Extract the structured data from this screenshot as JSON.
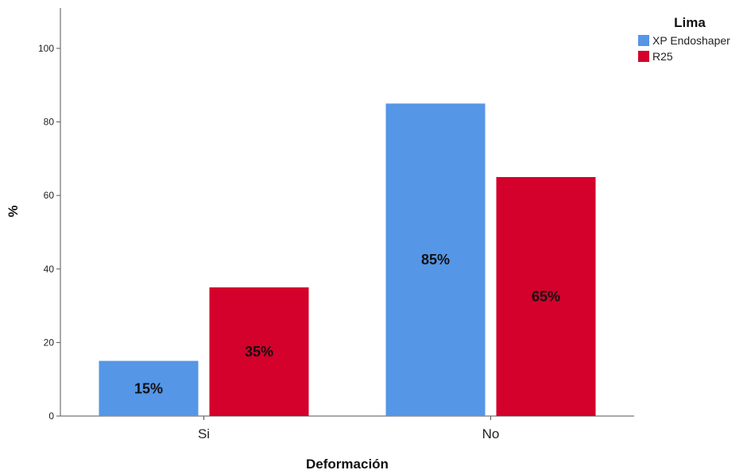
{
  "chart_data": {
    "type": "bar",
    "categories": [
      "Si",
      "No"
    ],
    "series": [
      {
        "name": "XP Endoshaper",
        "values": [
          15,
          85
        ],
        "labels": [
          "15%",
          "85%"
        ],
        "color": "#5596e6"
      },
      {
        "name": "R25",
        "values": [
          35,
          65
        ],
        "labels": [
          "35%",
          "65%"
        ],
        "color": "#d3012c"
      }
    ],
    "title": "",
    "xlabel": "Deformación",
    "ylabel": "%",
    "ylim": [
      0,
      111
    ],
    "yticks": [
      0,
      20,
      40,
      60,
      80,
      100
    ],
    "grid": false,
    "legend": {
      "title": "Lima",
      "position": "top-right"
    }
  }
}
